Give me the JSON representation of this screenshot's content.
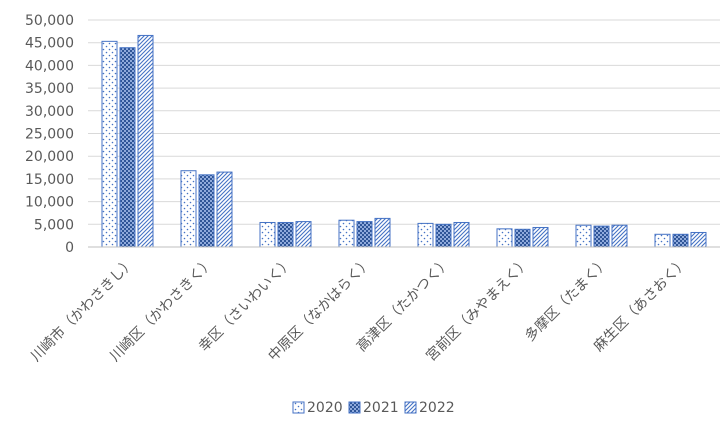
{
  "chart_data": {
    "type": "bar",
    "title": "",
    "xlabel": "",
    "ylabel": "",
    "ylim": [
      0,
      50000
    ],
    "yticks": [
      0,
      5000,
      10000,
      15000,
      20000,
      25000,
      30000,
      35000,
      40000,
      45000,
      50000
    ],
    "ytick_labels": [
      "0",
      "5,000",
      "10,000",
      "15,000",
      "20,000",
      "25,000",
      "30,000",
      "35,000",
      "40,000",
      "45,000",
      "50,000"
    ],
    "grid": true,
    "legend_position": "bottom",
    "categories": [
      "川崎市（かわさきし）",
      "川崎区（かわさきく）",
      "幸区（さいわいく）",
      "中原区（なかはらく）",
      "高津区（たかつく）",
      "宮前区（みやまえく）",
      "多摩区（たまく）",
      "麻生区（あさおく）"
    ],
    "series": [
      {
        "name": "2020",
        "values": [
          45300,
          16800,
          5400,
          5900,
          5200,
          4000,
          4800,
          2800
        ]
      },
      {
        "name": "2021",
        "values": [
          43900,
          15900,
          5400,
          5600,
          5000,
          3900,
          4600,
          2800
        ]
      },
      {
        "name": "2022",
        "values": [
          46600,
          16500,
          5600,
          6300,
          5400,
          4300,
          4800,
          3200
        ]
      }
    ],
    "colors": {
      "axis": "#bfbfbf",
      "grid": "#d9d9d9",
      "text": "#595959",
      "bar_outline": "#4472c4"
    }
  }
}
